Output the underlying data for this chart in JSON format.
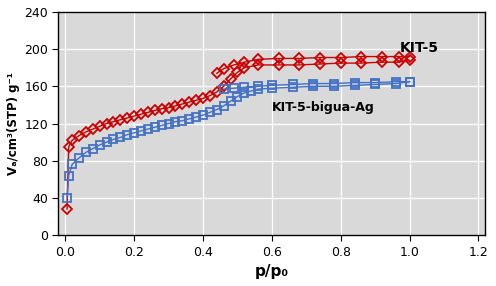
{
  "kit5_adsorption_x": [
    0.005,
    0.01,
    0.02,
    0.04,
    0.06,
    0.08,
    0.1,
    0.12,
    0.14,
    0.16,
    0.18,
    0.2,
    0.22,
    0.24,
    0.26,
    0.28,
    0.3,
    0.32,
    0.34,
    0.36,
    0.38,
    0.4,
    0.42,
    0.44,
    0.46,
    0.48,
    0.5,
    0.52,
    0.56,
    0.62,
    0.68,
    0.74,
    0.8,
    0.86,
    0.92,
    0.97,
    1.0
  ],
  "kit5_adsorption_y": [
    28,
    95,
    102,
    107,
    111,
    114,
    117,
    120,
    122,
    124,
    126,
    128,
    130,
    132,
    134,
    136,
    137,
    139,
    141,
    143,
    145,
    147,
    150,
    154,
    160,
    168,
    175,
    180,
    183,
    183,
    183,
    184,
    185,
    185,
    186,
    186,
    188
  ],
  "kit5_desorption_x": [
    1.0,
    0.97,
    0.92,
    0.86,
    0.8,
    0.74,
    0.68,
    0.62,
    0.56,
    0.52,
    0.49,
    0.46,
    0.44
  ],
  "kit5_desorption_y": [
    192,
    192,
    192,
    192,
    191,
    191,
    190,
    190,
    189,
    186,
    183,
    179,
    174
  ],
  "bigua_adsorption_x": [
    0.005,
    0.01,
    0.02,
    0.04,
    0.06,
    0.08,
    0.1,
    0.12,
    0.14,
    0.16,
    0.18,
    0.2,
    0.22,
    0.24,
    0.26,
    0.28,
    0.3,
    0.32,
    0.34,
    0.36,
    0.38,
    0.4,
    0.42,
    0.44,
    0.46,
    0.48,
    0.5,
    0.52,
    0.54,
    0.56,
    0.6,
    0.66,
    0.72,
    0.78,
    0.84,
    0.9,
    0.96,
    1.0
  ],
  "bigua_adsorption_y": [
    40,
    64,
    76,
    83,
    89,
    93,
    97,
    100,
    103,
    105,
    108,
    110,
    112,
    114,
    116,
    118,
    120,
    122,
    123,
    125,
    127,
    129,
    132,
    135,
    139,
    144,
    149,
    153,
    155,
    157,
    158,
    159,
    160,
    160,
    161,
    162,
    163,
    165
  ],
  "bigua_desorption_x": [
    1.0,
    0.96,
    0.9,
    0.84,
    0.78,
    0.72,
    0.66,
    0.6,
    0.56,
    0.52,
    0.49,
    0.46
  ],
  "bigua_desorption_y": [
    165,
    165,
    164,
    164,
    163,
    163,
    162,
    161,
    160,
    159,
    158,
    157
  ],
  "kit5_color": "#cc0000",
  "bigua_color": "#4472c4",
  "xlabel": "p/p₀",
  "ylabel": "Vₐ/cm³(STP) g⁻¹",
  "xlim": [
    -0.02,
    1.22
  ],
  "ylim": [
    0,
    240
  ],
  "yticks": [
    0,
    40,
    80,
    120,
    160,
    200,
    240
  ],
  "xticks": [
    0.0,
    0.2,
    0.4,
    0.6,
    0.8,
    1.0,
    1.2
  ],
  "label_kit5": "KIT-5",
  "label_bigua": "KIT-5-bigua-Ag",
  "plot_bg_color": "#d9d9d9",
  "fig_bg_color": "#ffffff"
}
